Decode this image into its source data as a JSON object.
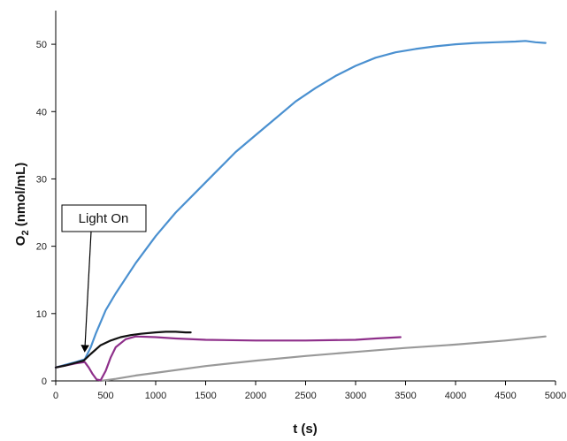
{
  "chart_data": {
    "type": "line",
    "xlabel": "t (s)",
    "ylabel_main": "O",
    "ylabel_sub": "2",
    "ylabel_rest": " (nmol/mL)",
    "xlim": [
      0,
      5000
    ],
    "ylim": [
      0,
      55
    ],
    "x_ticks": [
      0,
      500,
      1000,
      1500,
      2000,
      2500,
      3000,
      3500,
      4000,
      4500,
      5000
    ],
    "y_ticks": [
      0,
      10,
      20,
      30,
      40,
      50
    ],
    "grid": false,
    "annotation": {
      "text": "Light On",
      "points_to": [
        290,
        4
      ]
    },
    "series": [
      {
        "color": "#4a90d0",
        "x": [
          0,
          100,
          200,
          290,
          350,
          400,
          500,
          600,
          800,
          1000,
          1200,
          1400,
          1600,
          1800,
          2000,
          2200,
          2400,
          2600,
          2800,
          3000,
          3200,
          3400,
          3600,
          3800,
          4000,
          4200,
          4400,
          4600,
          4700,
          4800,
          4900
        ],
        "y": [
          2,
          2.4,
          2.8,
          3.2,
          5,
          7,
          10.5,
          13,
          17.5,
          21.5,
          25,
          28,
          31,
          34,
          36.5,
          39,
          41.5,
          43.5,
          45.3,
          46.8,
          48,
          48.8,
          49.3,
          49.7,
          50,
          50.2,
          50.3,
          50.4,
          50.5,
          50.3,
          50.2
        ]
      },
      {
        "color": "#111111",
        "x": [
          0,
          100,
          200,
          280,
          350,
          450,
          550,
          650,
          750,
          850,
          1000,
          1100,
          1200,
          1300,
          1350
        ],
        "y": [
          2,
          2.3,
          2.7,
          3,
          4,
          5.3,
          6,
          6.5,
          6.8,
          7,
          7.2,
          7.3,
          7.3,
          7.2,
          7.2
        ]
      },
      {
        "color": "#8e2f8a",
        "x": [
          0,
          100,
          200,
          290,
          330,
          370,
          410,
          450,
          500,
          550,
          600,
          700,
          800,
          1000,
          1200,
          1500,
          2000,
          2500,
          3000,
          3200,
          3450
        ],
        "y": [
          2,
          2.3,
          2.6,
          2.8,
          2,
          1,
          0.2,
          0.1,
          1.5,
          3.5,
          5,
          6.2,
          6.6,
          6.5,
          6.3,
          6.1,
          6,
          6,
          6.1,
          6.3,
          6.5
        ]
      },
      {
        "color": "#999999",
        "x": [
          450,
          600,
          800,
          1000,
          1500,
          2000,
          2500,
          3000,
          3500,
          4000,
          4500,
          4900
        ],
        "y": [
          0,
          0.3,
          0.8,
          1.2,
          2.2,
          3,
          3.7,
          4.3,
          4.9,
          5.4,
          6,
          6.6
        ]
      }
    ]
  }
}
